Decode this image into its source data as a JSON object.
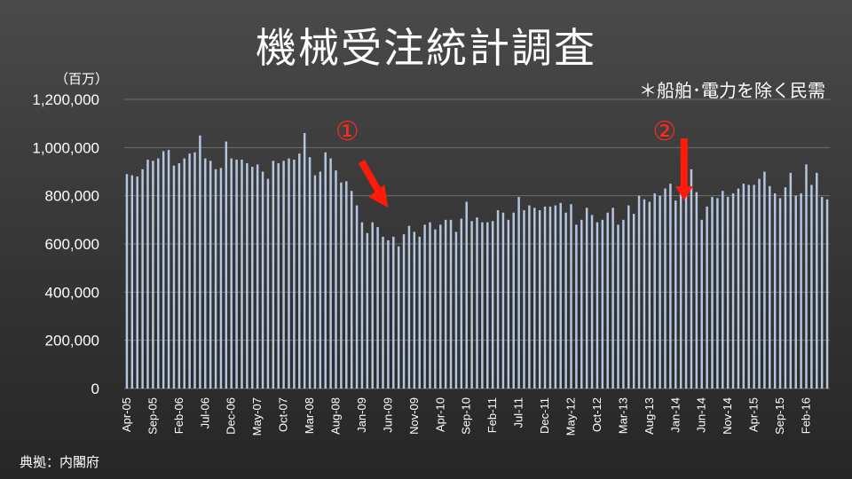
{
  "title": "機械受注統計調査",
  "note": "＊船舶･電力を除く民需",
  "source": "典拠：内閣府",
  "colors": {
    "bar": "#b4c6e0",
    "grid": "#6e6e6e",
    "arrow": "#ff1a0a",
    "text": "#ffffff"
  },
  "annotations": [
    {
      "label": "①",
      "x_index": 51,
      "arrow": "diagonal"
    },
    {
      "label": "②",
      "x_index": 109,
      "arrow": "vertical"
    }
  ],
  "chart_data": {
    "type": "bar",
    "ylabel": "（百万）",
    "ylim": [
      0,
      1200000
    ],
    "yticks": [
      0,
      200000,
      400000,
      600000,
      800000,
      1000000,
      1200000
    ],
    "ytick_labels": [
      "0",
      "200,000",
      "400,000",
      "600,000",
      "800,000",
      "1,000,000",
      "1,200,000"
    ],
    "x_tick_labels": [
      "Apr-05",
      "Sep-05",
      "Feb-06",
      "Jul-06",
      "Dec-06",
      "May-07",
      "Oct-07",
      "Mar-08",
      "Aug-08",
      "Jan-09",
      "Jun-09",
      "Nov-09",
      "Apr-10",
      "Sep-10",
      "Feb-11",
      "Jul-11",
      "Dec-11",
      "May-12",
      "Oct-12",
      "Mar-13",
      "Aug-13",
      "Jan-14",
      "Jun-14",
      "Nov-14",
      "Apr-15",
      "Sep-15",
      "Feb-16"
    ],
    "x_tick_every": 5,
    "grid": true,
    "values": [
      890000,
      885000,
      880000,
      910000,
      950000,
      945000,
      955000,
      985000,
      990000,
      925000,
      935000,
      955000,
      975000,
      980000,
      1050000,
      955000,
      945000,
      910000,
      915000,
      1025000,
      955000,
      950000,
      950000,
      935000,
      920000,
      930000,
      900000,
      870000,
      945000,
      935000,
      945000,
      955000,
      950000,
      975000,
      1060000,
      960000,
      885000,
      900000,
      980000,
      955000,
      905000,
      855000,
      860000,
      820000,
      760000,
      690000,
      645000,
      690000,
      670000,
      630000,
      615000,
      630000,
      590000,
      640000,
      675000,
      650000,
      630000,
      680000,
      690000,
      660000,
      680000,
      700000,
      700000,
      650000,
      705000,
      775000,
      695000,
      710000,
      690000,
      690000,
      695000,
      740000,
      730000,
      700000,
      730000,
      795000,
      740000,
      760000,
      750000,
      740000,
      755000,
      755000,
      760000,
      770000,
      730000,
      765000,
      680000,
      700000,
      750000,
      720000,
      690000,
      700000,
      730000,
      750000,
      680000,
      700000,
      760000,
      725000,
      800000,
      785000,
      775000,
      810000,
      800000,
      830000,
      850000,
      780000,
      810000,
      800000,
      910000,
      815000,
      700000,
      755000,
      795000,
      790000,
      820000,
      795000,
      810000,
      830000,
      850000,
      845000,
      845000,
      870000,
      900000,
      840000,
      810000,
      790000,
      835000,
      895000,
      800000,
      810000,
      930000,
      845000,
      895000,
      795000,
      785000
    ]
  }
}
